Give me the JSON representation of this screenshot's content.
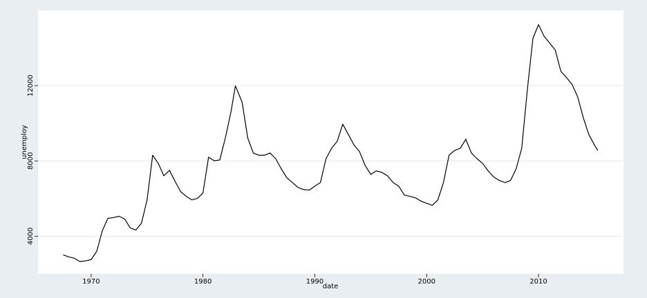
{
  "chart_data": {
    "type": "line",
    "xlabel": "date",
    "ylabel": "unemploy",
    "x": [
      1967.5,
      1968.0,
      1968.5,
      1969.0,
      1969.5,
      1970.0,
      1970.5,
      1971.0,
      1971.5,
      1972.0,
      1972.5,
      1973.0,
      1973.5,
      1974.0,
      1974.5,
      1975.0,
      1975.5,
      1976.0,
      1976.5,
      1977.0,
      1977.5,
      1978.0,
      1978.5,
      1979.0,
      1979.5,
      1980.0,
      1980.5,
      1981.0,
      1981.5,
      1982.0,
      1982.5,
      1982.9,
      1983.5,
      1984.0,
      1984.5,
      1985.0,
      1985.5,
      1986.0,
      1986.5,
      1987.0,
      1987.5,
      1988.0,
      1988.5,
      1989.0,
      1989.5,
      1990.0,
      1990.5,
      1991.0,
      1991.5,
      1992.0,
      1992.5,
      1993.0,
      1993.5,
      1994.0,
      1994.5,
      1995.0,
      1995.5,
      1996.0,
      1996.5,
      1997.0,
      1997.5,
      1998.0,
      1998.5,
      1999.0,
      1999.5,
      2000.0,
      2000.5,
      2001.0,
      2001.5,
      2002.0,
      2002.5,
      2003.0,
      2003.5,
      2004.0,
      2004.5,
      2005.0,
      2005.5,
      2006.0,
      2006.5,
      2007.0,
      2007.5,
      2008.0,
      2008.5,
      2009.0,
      2009.5,
      2010.0,
      2010.5,
      2011.0,
      2011.5,
      2012.0,
      2012.5,
      2013.0,
      2013.5,
      2014.0,
      2014.5,
      2015.0,
      2015.3
    ],
    "series": [
      {
        "name": "unemploy",
        "color": "#000000",
        "values": [
          3010,
          2900,
          2830,
          2650,
          2690,
          2760,
          3200,
          4290,
          4950,
          4990,
          5060,
          4910,
          4440,
          4330,
          4690,
          5930,
          8300,
          7870,
          7210,
          7500,
          6920,
          6370,
          6120,
          5930,
          6010,
          6300,
          8200,
          8010,
          8050,
          9220,
          10600,
          11990,
          11120,
          9220,
          8420,
          8300,
          8300,
          8420,
          8120,
          7580,
          7100,
          6850,
          6590,
          6480,
          6450,
          6660,
          6850,
          8120,
          8670,
          9040,
          9950,
          9400,
          8850,
          8490,
          7760,
          7280,
          7470,
          7390,
          7210,
          6850,
          6660,
          6190,
          6120,
          6040,
          5860,
          5750,
          5640,
          5930,
          6850,
          8300,
          8560,
          8670,
          9150,
          8420,
          8120,
          7870,
          7470,
          7140,
          6960,
          6850,
          6960,
          7580,
          8670,
          11770,
          14510,
          15240,
          14620,
          14260,
          13890,
          12760,
          12430,
          12070,
          11410,
          10310,
          9400,
          8850,
          8560
        ]
      }
    ],
    "xlim": [
      1965.25,
      2017.6
    ],
    "xticks": [
      1970,
      1980,
      1990,
      2000,
      2010
    ],
    "ylim": [
      2000,
      16000
    ],
    "yticks": [
      4000,
      8000,
      12000
    ],
    "grid": true
  }
}
